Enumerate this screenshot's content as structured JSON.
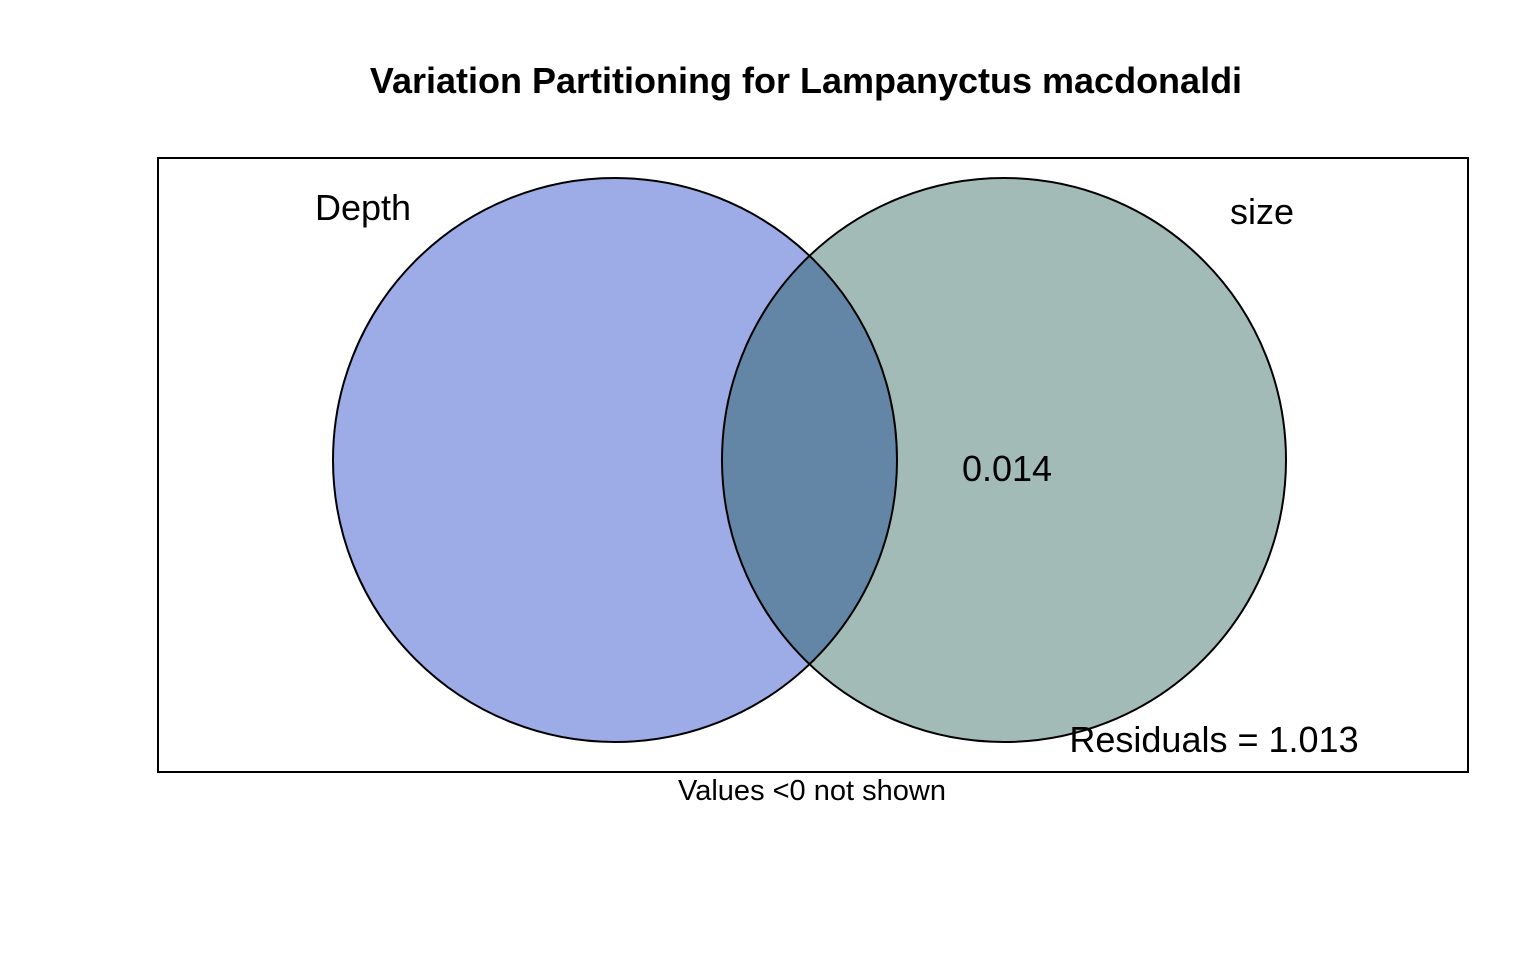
{
  "title": "Variation Partitioning for Lampanyctus macdonaldi",
  "sets": [
    {
      "key": "depth",
      "label": "Depth",
      "fill": "#9DABE6"
    },
    {
      "key": "size",
      "label": "size",
      "fill": "#A2BBB7"
    }
  ],
  "overlap_fill": "#6386A6",
  "fractions": {
    "size_only": "0.014"
  },
  "residuals_text": "Residuals = 1.013",
  "footnote": "Values <0 not shown"
}
